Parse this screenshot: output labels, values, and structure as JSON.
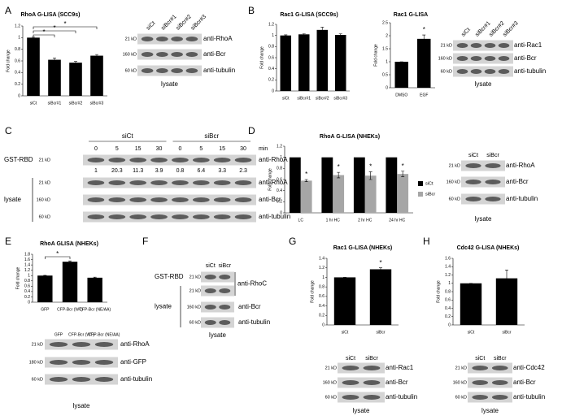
{
  "panels": [
    "A",
    "B",
    "C",
    "D",
    "E",
    "F",
    "G",
    "H"
  ],
  "chart_data": [
    {
      "type": "bar",
      "title": "RhoA G-LISA (SCC9s)",
      "y_label": "Fold change",
      "categories": [
        "siCt",
        "siBcr#1",
        "siBcr#2",
        "siBcr#3"
      ],
      "values": [
        1,
        0.62,
        0.57,
        0.69
      ],
      "errors": [
        0.01,
        0.03,
        0.02,
        0.02
      ],
      "color": "#000000",
      "ylim": [
        0,
        1.2
      ],
      "yticks": [
        0,
        0.2,
        0.4,
        0.6,
        0.8,
        1,
        1.2
      ],
      "annotations": [
        "*",
        "*",
        "*"
      ]
    },
    {
      "type": "bar",
      "title": "Rac1 G-LISA (SCC9s)",
      "y_label": "Fold change",
      "categories": [
        "siCt",
        "siBcr#1",
        "siBcr#2",
        "siBcr#3"
      ],
      "values": [
        1,
        1.02,
        1.1,
        1.01
      ],
      "errors": [
        0.01,
        0.01,
        0.05,
        0.02
      ],
      "color": "#000000",
      "ylim": [
        0,
        1.2
      ],
      "yticks": [
        0,
        0.2,
        0.4,
        0.6,
        0.8,
        1,
        1.2
      ]
    },
    {
      "type": "bar",
      "title": "Rac1 G-LISA",
      "y_label": "Fold change",
      "categories": [
        "DMSO",
        "EGF"
      ],
      "values": [
        1,
        1.88
      ],
      "errors": [
        0,
        0.15
      ],
      "color": "#000000",
      "ylim": [
        0,
        2.5
      ],
      "yticks": [
        0,
        0.5,
        1,
        1.5,
        2,
        2.5
      ],
      "annotations": [
        "*"
      ]
    },
    {
      "type": "bar",
      "title": "RhoA G-LISA (NHEKs)",
      "y_label": "Fold change",
      "categories": [
        "LC",
        "1 hr HC",
        "2 hr HC",
        "24 hr HC"
      ],
      "series": [
        {
          "name": "siCt",
          "color": "#000000",
          "values": [
            1,
            1,
            1,
            1
          ]
        },
        {
          "name": "siBcr",
          "color": "#a6a6a6",
          "values": [
            0.58,
            0.68,
            0.67,
            0.7
          ],
          "errors": [
            0.02,
            0.05,
            0.07,
            0.05
          ]
        }
      ],
      "ylim": [
        0,
        1.2
      ],
      "yticks": [
        0,
        0.2,
        0.4,
        0.6,
        0.8,
        1,
        1.2
      ],
      "legend": "right",
      "annotations": [
        "*",
        "*",
        "*",
        "*"
      ]
    },
    {
      "type": "bar",
      "title": "RhoA GLISA (NHEKs)",
      "y_label": "Fold change",
      "categories": [
        "GFP",
        "CFP-Bcr (WT)",
        "CFP-Bcr (NE/AA)"
      ],
      "values": [
        1,
        1.52,
        0.92
      ],
      "errors": [
        0.01,
        0.03,
        0.02
      ],
      "color": "#000000",
      "ylim": [
        0,
        1.8
      ],
      "yticks": [
        0,
        0.2,
        0.4,
        0.6,
        0.8,
        1,
        1.2,
        1.4,
        1.6,
        1.8
      ],
      "annotations": [
        "*"
      ]
    },
    {
      "type": "bar",
      "title": "Rac1 G-LISA (NHEKs)",
      "y_label": "Fold change",
      "categories": [
        "siCt",
        "siBcr"
      ],
      "values": [
        1,
        1.17
      ],
      "errors": [
        0,
        0.03
      ],
      "color": "#000000",
      "ylim": [
        0,
        1.4
      ],
      "yticks": [
        0,
        0.2,
        0.4,
        0.6,
        0.8,
        1,
        1.2,
        1.4
      ],
      "annotations": [
        "*"
      ]
    },
    {
      "type": "bar",
      "title": "Cdc42 G-LISA (NHEKs)",
      "y_label": "Fold change",
      "categories": [
        "siCt",
        "siBcr"
      ],
      "values": [
        1,
        1.12
      ],
      "errors": [
        0,
        0.2
      ],
      "color": "#000000",
      "ylim": [
        0,
        1.6
      ],
      "yticks": [
        0,
        0.2,
        0.4,
        0.6,
        0.8,
        1,
        1.2,
        1.4,
        1.6
      ]
    }
  ],
  "blots": [
    {
      "lanes": [
        "siCt",
        "siBcr#1",
        "siBcr#2",
        "siBcr#3"
      ],
      "sections": [
        {
          "rows": [
            {
              "kd": "21 kD",
              "label": "anti-RhoA"
            },
            {
              "kd": "160 kD",
              "label": "anti-Bcr"
            },
            {
              "kd": "60 kD",
              "label": "anti-tubulin"
            }
          ]
        }
      ],
      "footer": "lysate"
    },
    {
      "lanes": [
        "siCt",
        "siBcr#1",
        "siBcr#2",
        "siBcr#3"
      ],
      "sections": [
        {
          "rows": [
            {
              "kd": "21 kD",
              "label": "anti-Rac1"
            },
            {
              "kd": "160 kD",
              "label": "anti-Bcr"
            },
            {
              "kd": "60 kD",
              "label": "anti-tubulin"
            }
          ]
        }
      ],
      "footer": "lysate"
    },
    {
      "lane_groups": [
        "siCt",
        "siBcr"
      ],
      "unit": "min",
      "lanes": [
        0,
        5,
        15,
        30,
        0,
        5,
        15,
        30
      ],
      "sections": [
        {
          "label": "GST-RBD",
          "rows": [
            {
              "kd": "21 kD",
              "label": "anti-RhoA"
            }
          ],
          "quant": [
            1,
            20.3,
            11.3,
            3.9,
            0.8,
            6.4,
            3.3,
            2.3
          ]
        },
        {
          "label": "lysate",
          "rows": [
            {
              "kd": "21 kD",
              "label": "anti-RhoA"
            },
            {
              "kd": "160 kD",
              "label": "anti-Bcr"
            },
            {
              "kd": "60 kD",
              "label": "anti-tubulin"
            }
          ]
        }
      ]
    },
    {
      "lanes": [
        "siCt",
        "siBcr"
      ],
      "sections": [
        {
          "rows": [
            {
              "kd": "21 kD",
              "label": "anti-RhoA"
            },
            {
              "kd": "160 kD",
              "label": "anti-Bcr"
            },
            {
              "kd": "60 kD",
              "label": "anti-tubulin"
            }
          ]
        }
      ],
      "footer": "lysate"
    },
    {
      "lanes": [
        "GFP",
        "CFP-Bcr (WT)",
        "CFP-Bcr (NE/AA)"
      ],
      "sections": [
        {
          "rows": [
            {
              "kd": "21 kD",
              "label": "anti-RhoA"
            },
            {
              "kd": "180 kD",
              "label": "anti-GFP"
            },
            {
              "kd": "60 kD",
              "label": "anti-tubulin"
            }
          ]
        }
      ],
      "footer": "lysate"
    },
    {
      "lanes": [
        "siCt",
        "siBcr"
      ],
      "span_label": "anti-RhoC",
      "sections": [
        {
          "label": "GST-RBD",
          "rows": [
            {
              "kd": "21 kD"
            }
          ]
        },
        {
          "label": "lysate",
          "rows": [
            {
              "kd": "21 kD"
            },
            {
              "kd": "160 kD",
              "label": "anti-Bcr"
            },
            {
              "kd": "60 kD",
              "label": "anti-tubulin"
            }
          ]
        }
      ],
      "footer": "lysate"
    },
    {
      "lanes": [
        "siCt",
        "siBcr"
      ],
      "sections": [
        {
          "rows": [
            {
              "kd": "21 kD",
              "label": "anti-Rac1"
            },
            {
              "kd": "160 kD",
              "label": "anti-Bcr"
            },
            {
              "kd": "60 kD",
              "label": "anti-tubulin"
            }
          ]
        }
      ],
      "footer": "lysate"
    },
    {
      "lanes": [
        "siCt",
        "siBcr"
      ],
      "sections": [
        {
          "rows": [
            {
              "kd": "21 kD",
              "label": "anti-Cdc42"
            },
            {
              "kd": "160 kD",
              "label": "anti-Bcr"
            },
            {
              "kd": "60 kD",
              "label": "anti-tubulin"
            }
          ]
        }
      ],
      "footer": "lysate"
    }
  ]
}
